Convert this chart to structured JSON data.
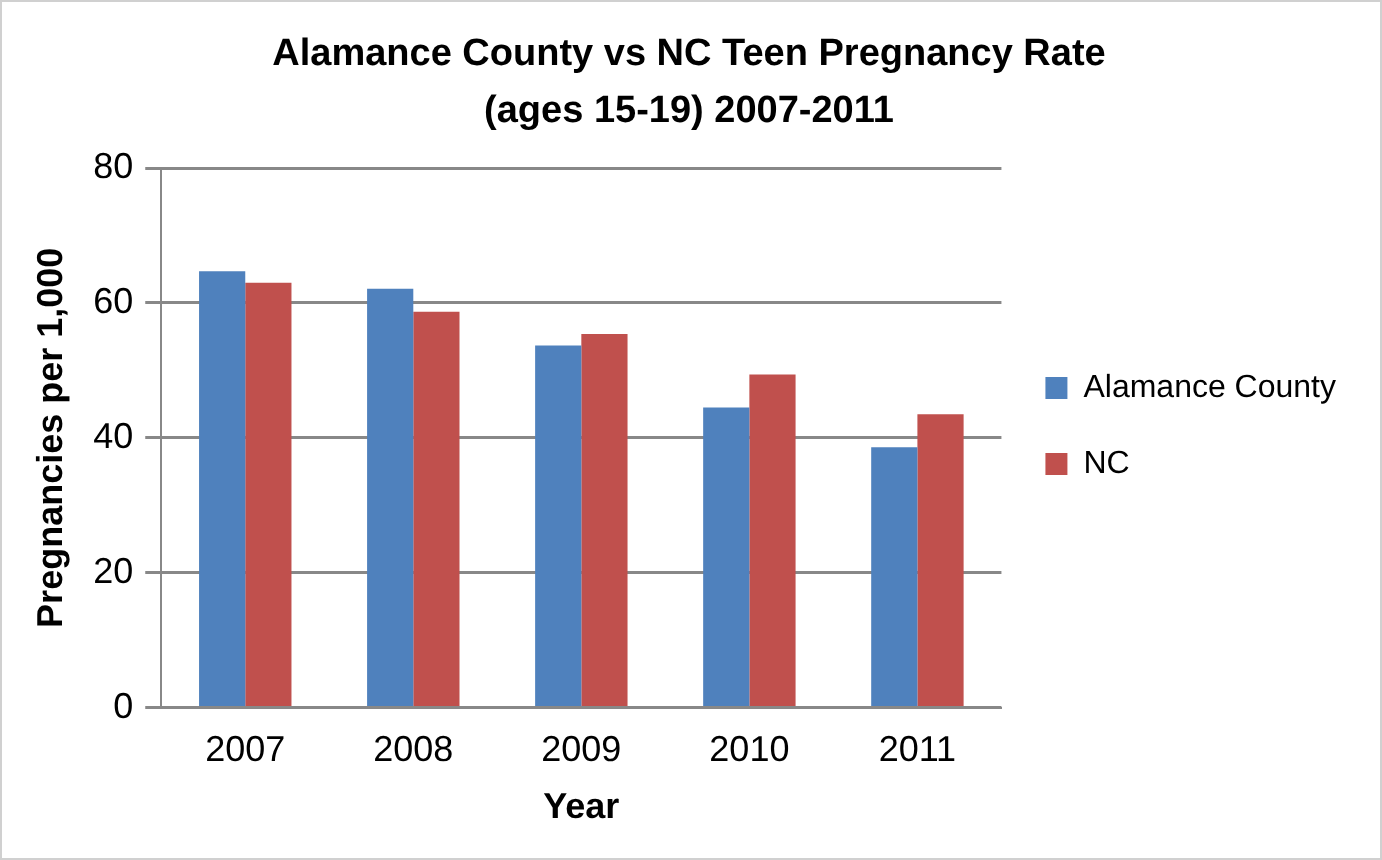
{
  "chart_data": {
    "type": "bar",
    "title": "Alamance County vs NC Teen Pregnancy Rate (ages 15-19) 2007-2011",
    "xlabel": "Year",
    "ylabel": "Pregnancies per 1,000",
    "categories": [
      "2007",
      "2008",
      "2009",
      "2010",
      "2011"
    ],
    "series": [
      {
        "name": "Alamance County",
        "color": "#4f81bd",
        "values": [
          64.7,
          62.1,
          53.7,
          44.5,
          38.6
        ]
      },
      {
        "name": "NC",
        "color": "#c0504d",
        "values": [
          63.0,
          58.7,
          55.4,
          49.4,
          43.5
        ]
      }
    ],
    "ylim": [
      0,
      80
    ],
    "yticks": [
      0,
      20,
      40,
      60,
      80
    ],
    "grid": "y",
    "legend": "right"
  }
}
